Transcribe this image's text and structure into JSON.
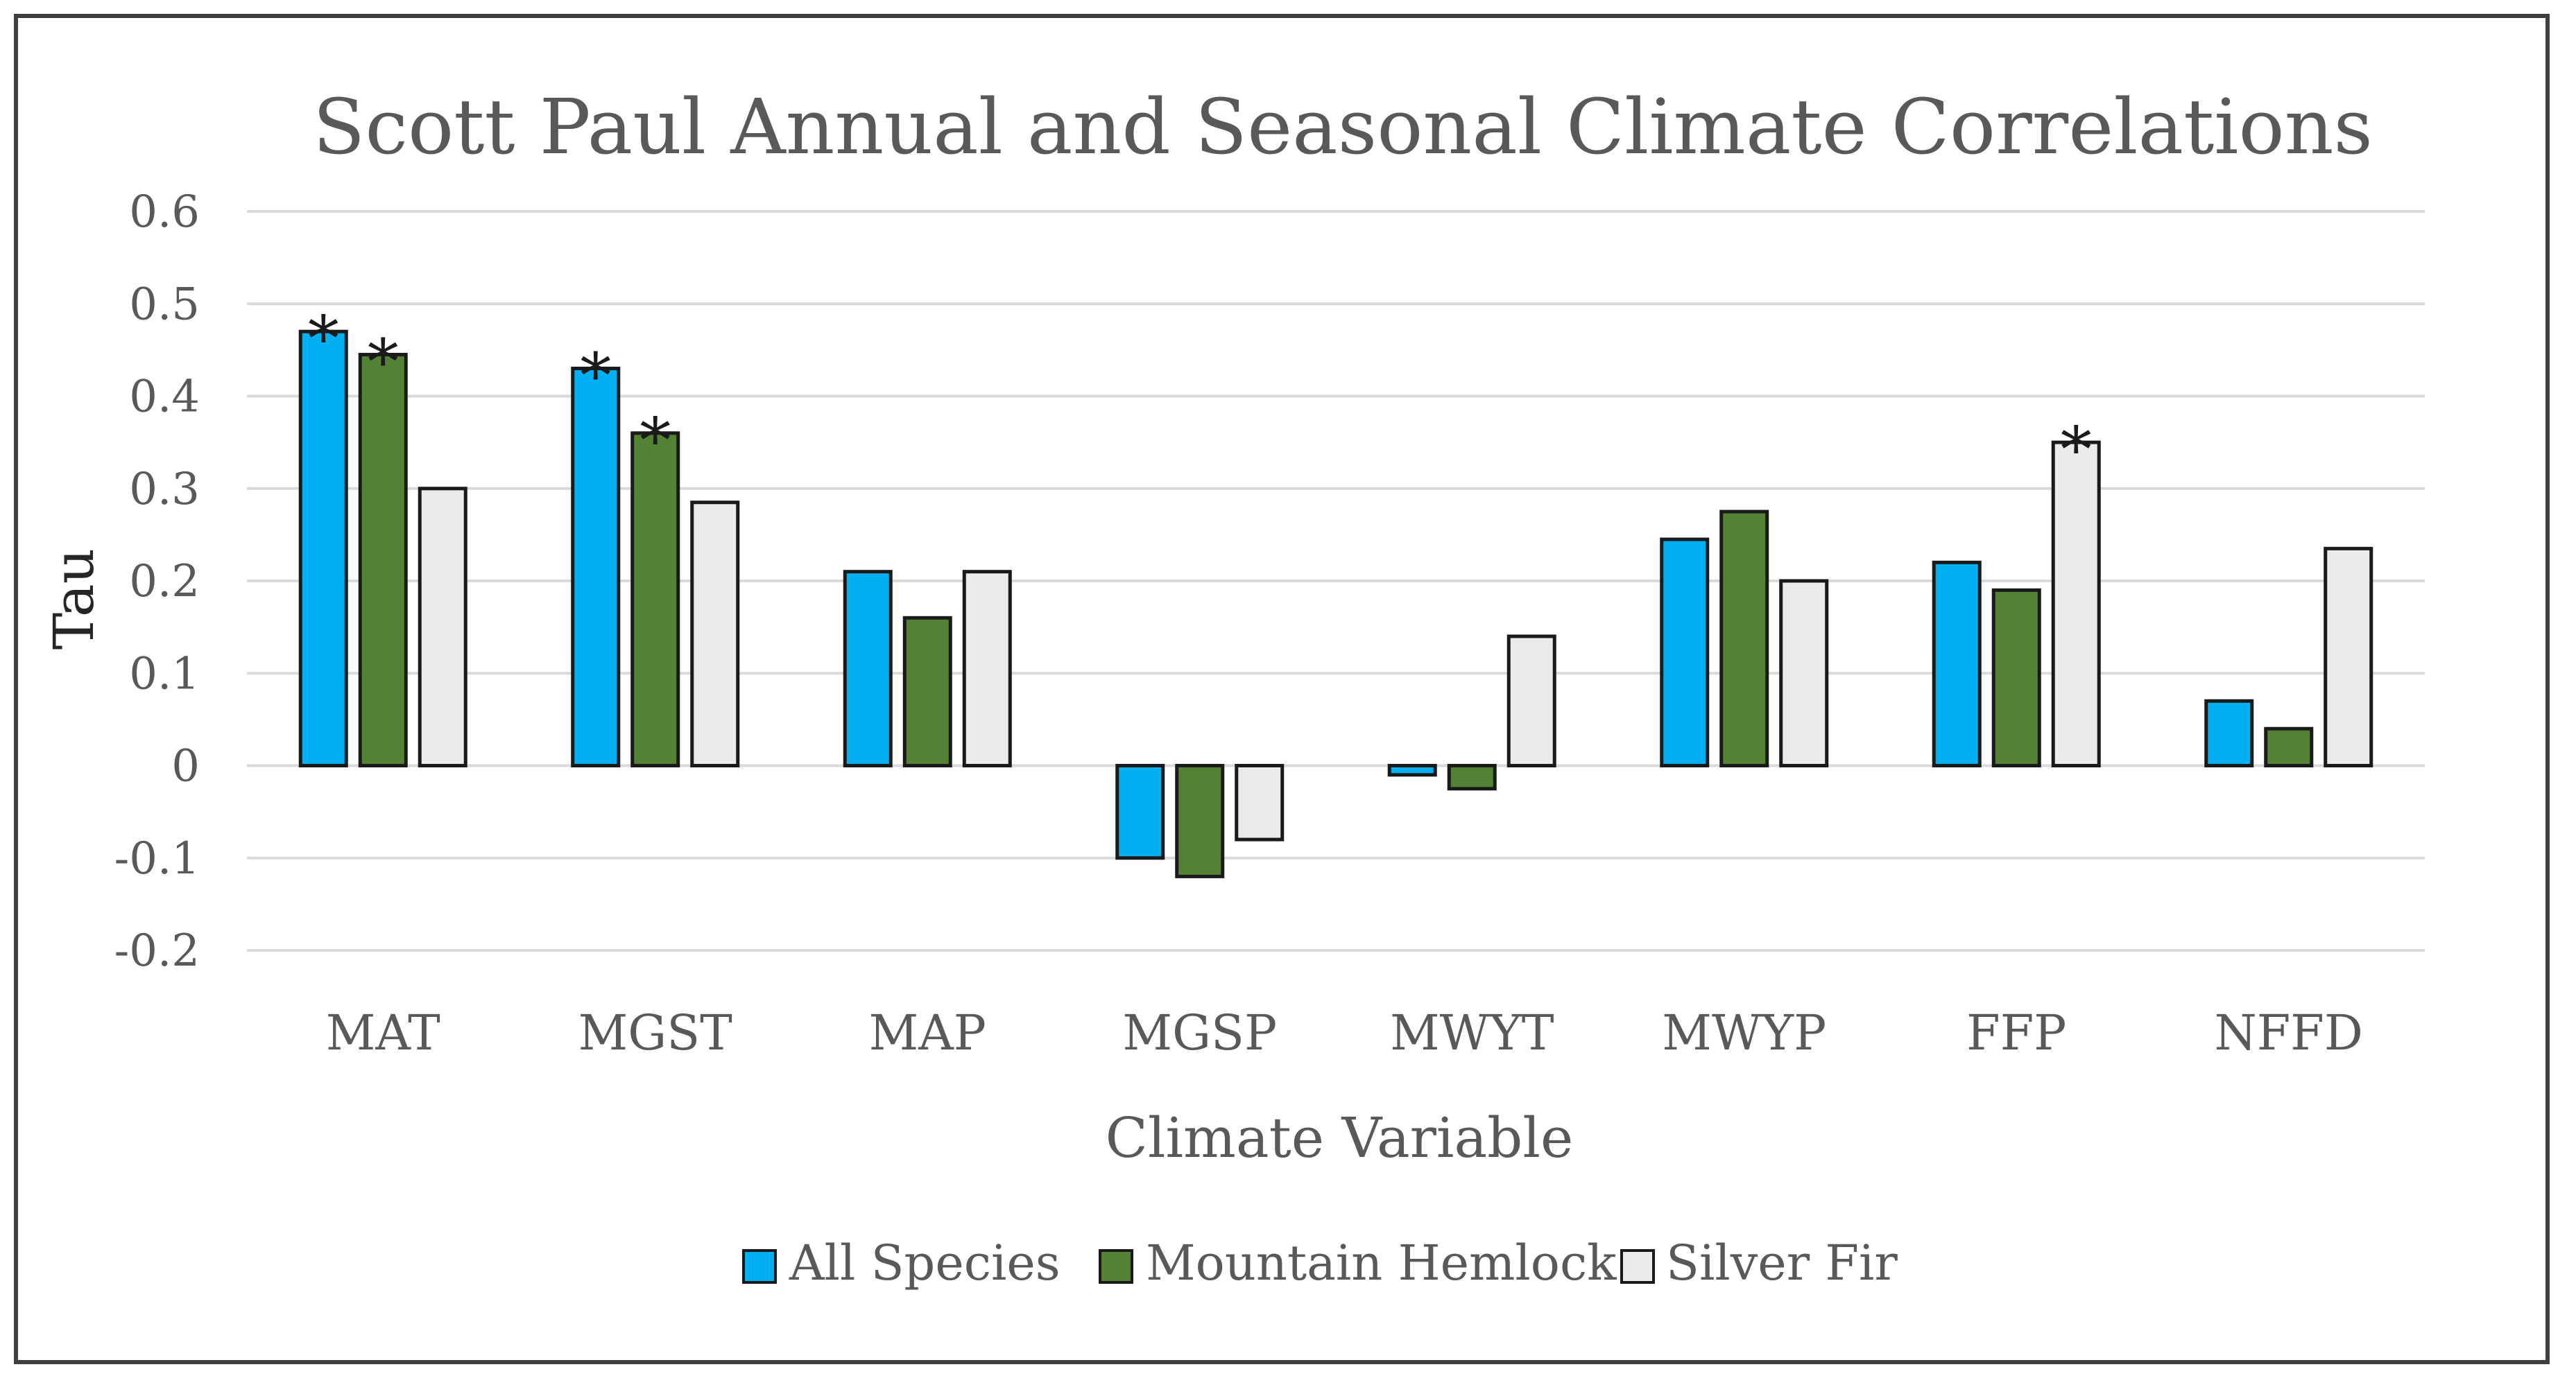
{
  "chart_data": {
    "type": "bar",
    "title": "Scott Paul Annual and Seasonal Climate Correlations",
    "xlabel": "Climate Variable",
    "ylabel": "Tau",
    "ylim": [
      -0.2,
      0.6
    ],
    "yticks": [
      -0.2,
      -0.1,
      0,
      0.1,
      0.2,
      0.3,
      0.4,
      0.5,
      0.6
    ],
    "ytick_labels": [
      "-0.2",
      "-0.1",
      "0",
      "0.1",
      "0.2",
      "0.3",
      "0.4",
      "0.5",
      "0.6"
    ],
    "grid": true,
    "legend_position": "bottom",
    "categories": [
      "MAT",
      "MGST",
      "MAP",
      "MGSP",
      "MWYT",
      "MWYP",
      "FFP",
      "NFFD"
    ],
    "series": [
      {
        "name": "All Species",
        "color": "#00B0F0",
        "values": [
          0.47,
          0.43,
          0.21,
          -0.1,
          -0.01,
          0.245,
          0.22,
          0.07
        ],
        "significant": [
          true,
          true,
          false,
          false,
          false,
          false,
          false,
          false
        ]
      },
      {
        "name": "Mountain Hemlock",
        "color": "#548235",
        "values": [
          0.445,
          0.36,
          0.16,
          -0.12,
          -0.025,
          0.275,
          0.19,
          0.04
        ],
        "significant": [
          true,
          true,
          false,
          false,
          false,
          false,
          false,
          false
        ]
      },
      {
        "name": "Silver Fir",
        "color": "#EBEBEB",
        "values": [
          0.3,
          0.285,
          0.21,
          -0.08,
          0.14,
          0.2,
          0.35,
          0.235
        ],
        "significant": [
          false,
          false,
          false,
          false,
          false,
          false,
          true,
          false
        ]
      }
    ],
    "significance_marker": "*",
    "bar_edge_color": "#1a1a1a",
    "grid_color": "#D9D9D9",
    "text_color": "#595959"
  }
}
